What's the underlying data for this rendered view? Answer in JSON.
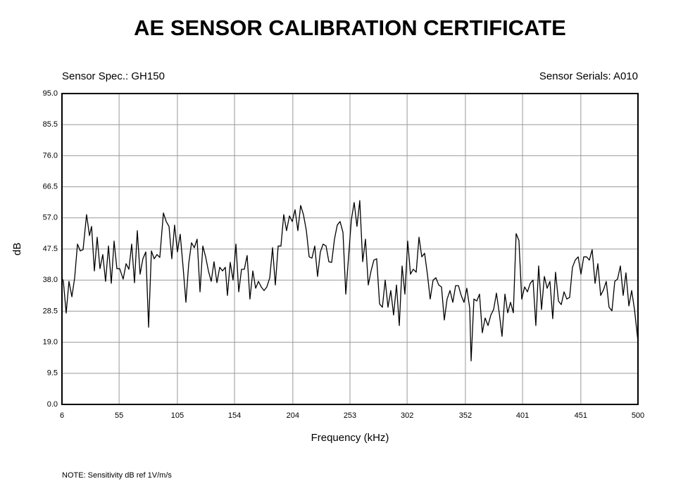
{
  "chart_data": {
    "type": "line",
    "title": "AE SENSOR CALIBRATION CERTIFICATE",
    "sensor_spec": "Sensor Spec.: GH150",
    "sensor_serials": "Sensor Serials: A010",
    "note": "NOTE:  Sensitivity dB ref 1V/m/s",
    "xlabel": "Frequency (kHz)",
    "ylabel": "dB",
    "xlim": [
      6,
      500
    ],
    "ylim": [
      0,
      95
    ],
    "xticks": [
      6,
      55,
      105,
      154,
      204,
      253,
      302,
      352,
      401,
      451,
      500
    ],
    "yticks": [
      {
        "value": 0,
        "label": "0.0"
      },
      9.5,
      {
        "value": 19,
        "label": "19.0"
      },
      28.5,
      {
        "value": 38,
        "label": "38.0"
      },
      47.5,
      {
        "value": 57,
        "label": "57.0"
      },
      66.5,
      {
        "value": 76,
        "label": "76.0"
      },
      85.5,
      {
        "value": 95,
        "label": "95.0"
      }
    ],
    "grid": true,
    "x": [
      6,
      7.2,
      9.6,
      12.0,
      14.5,
      16.9,
      19.3,
      21.7,
      24.1,
      27.1,
      29.6,
      31.4,
      33.8,
      36.2,
      38.6,
      41.0,
      43.4,
      45.9,
      48.3,
      50.7,
      53.1,
      55.5,
      58.5,
      61.0,
      63.4,
      65.8,
      68.2,
      70.6,
      73.0,
      75.4,
      77.9,
      80.3,
      82.7,
      85.1,
      87.5,
      89.9,
      93.0,
      95.4,
      97.8,
      100.2,
      102.6,
      105.0,
      107.4,
      109.9,
      112.3,
      114.7,
      117.1,
      119.5,
      121.9,
      124.4,
      126.8,
      129.2,
      131.6,
      134.0,
      136.4,
      138.9,
      141.3,
      143.7,
      146.1,
      147.9,
      150.3,
      152.7,
      155.2,
      157.6,
      160.0,
      162.4,
      164.8,
      167.2,
      169.7,
      172.1,
      174.5,
      176.9,
      179.3,
      181.7,
      184.2,
      186.6,
      189.0,
      191.4,
      193.8,
      196.2,
      198.6,
      201.1,
      203.5,
      205.9,
      208.3,
      210.7,
      213.1,
      215.6,
      218.0,
      220.4,
      222.8,
      225.2,
      227.6,
      230.0,
      232.5,
      234.9,
      237.3,
      239.7,
      242.1,
      244.5,
      247.0,
      249.4,
      251.8,
      254.2,
      256.6,
      259.0,
      261.4,
      263.9,
      266.3,
      268.7,
      271.1,
      273.5,
      275.9,
      278.4,
      280.8,
      283.2,
      285.6,
      288.0,
      290.4,
      292.9,
      295.3,
      297.7,
      300.1,
      302.5,
      304.9,
      307.3,
      309.8,
      312.2,
      314.6,
      317.0,
      319.4,
      321.8,
      324.3,
      326.7,
      329.1,
      331.5,
      333.9,
      336.3,
      338.8,
      341.2,
      343.6,
      346.0,
      348.4,
      350.8,
      353.2,
      355.7,
      356.9,
      359.3,
      361.7,
      364.1,
      366.5,
      368.9,
      371.4,
      373.8,
      376.2,
      378.6,
      381.0,
      383.4,
      385.9,
      388.3,
      390.7,
      393.1,
      395.5,
      397.9,
      400.3,
      402.8,
      405.2,
      407.6,
      410.0,
      412.4,
      414.8,
      417.3,
      419.7,
      422.1,
      424.5,
      426.9,
      429.3,
      431.8,
      434.2,
      436.6,
      439.0,
      441.4,
      443.8,
      446.2,
      448.7,
      451.1,
      453.5,
      455.9,
      458.3,
      460.7,
      463.2,
      465.6,
      468.0,
      470.4,
      472.8,
      475.2,
      477.7,
      480.1,
      482.5,
      484.9,
      487.3,
      489.7,
      492.2,
      494.6,
      497.0,
      500
    ],
    "series": [
      {
        "name": "dB",
        "color": "#000000",
        "values": [
          38.7,
          37.6,
          27.9,
          37.6,
          32.9,
          38.7,
          49.0,
          46.9,
          47.3,
          58.0,
          51.6,
          54.4,
          40.8,
          51.1,
          41.5,
          45.8,
          37.6,
          48.4,
          37.0,
          49.9,
          41.5,
          41.5,
          38.3,
          43.0,
          41.3,
          49.0,
          37.2,
          53.1,
          39.8,
          44.5,
          46.6,
          23.6,
          46.9,
          44.5,
          45.8,
          44.9,
          58.5,
          55.9,
          54.4,
          44.5,
          54.8,
          46.6,
          52.0,
          41.9,
          31.2,
          43.0,
          49.4,
          47.9,
          50.5,
          34.4,
          48.4,
          45.1,
          40.8,
          37.6,
          43.6,
          37.2,
          41.9,
          40.8,
          41.9,
          33.3,
          43.4,
          38.0,
          49.0,
          34.4,
          41.3,
          41.3,
          45.5,
          32.2,
          40.8,
          35.5,
          37.6,
          35.9,
          34.8,
          35.9,
          38.7,
          47.9,
          36.5,
          48.4,
          48.4,
          58.0,
          53.1,
          57.6,
          55.9,
          59.5,
          53.1,
          60.8,
          58.0,
          53.1,
          45.1,
          44.7,
          48.4,
          39.1,
          46.6,
          49.0,
          48.4,
          43.6,
          43.4,
          50.5,
          54.8,
          55.9,
          52.6,
          33.7,
          45.1,
          56.5,
          61.7,
          54.4,
          62.3,
          43.6,
          50.5,
          36.5,
          40.8,
          44.1,
          44.5,
          30.7,
          29.7,
          38.0,
          29.7,
          34.8,
          27.3,
          36.5,
          24.1,
          42.3,
          33.7,
          49.9,
          39.8,
          41.3,
          40.4,
          51.1,
          45.1,
          46.2,
          39.8,
          32.2,
          38.0,
          38.7,
          36.5,
          35.9,
          25.8,
          32.2,
          34.8,
          31.2,
          36.3,
          36.3,
          33.3,
          31.2,
          35.5,
          29.4,
          13.3,
          32.2,
          31.6,
          33.7,
          21.9,
          26.4,
          24.1,
          27.3,
          29.0,
          34.0,
          28.0,
          20.8,
          33.7,
          28.0,
          31.2,
          28.0,
          52.2,
          50.1,
          32.2,
          35.9,
          34.4,
          37.0,
          38.0,
          24.1,
          42.3,
          29.0,
          39.1,
          35.5,
          37.6,
          26.2,
          40.4,
          31.6,
          30.5,
          34.4,
          32.2,
          32.7,
          41.9,
          44.1,
          45.1,
          39.8,
          45.1,
          45.1,
          44.1,
          47.3,
          37.0,
          43.0,
          33.3,
          35.0,
          37.6,
          29.7,
          28.6,
          37.6,
          38.3,
          42.3,
          33.3,
          40.2,
          30.1,
          34.8,
          29.0,
          19.3
        ]
      }
    ]
  }
}
